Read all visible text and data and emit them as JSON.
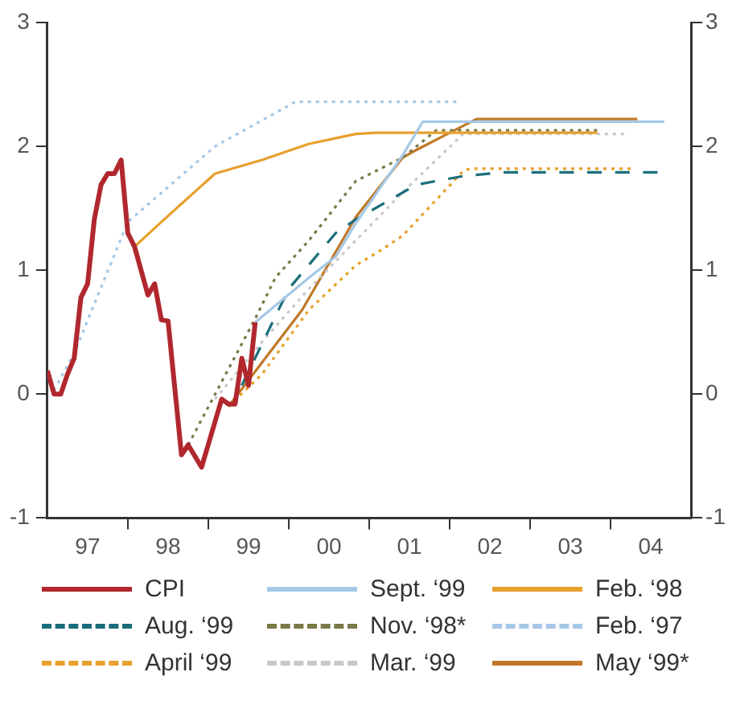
{
  "chart_data": {
    "type": "line",
    "xlim": [
      "1997-01",
      "2005-01"
    ],
    "xticks": [
      {
        "value": "1997-07",
        "label": "97"
      },
      {
        "value": "1998-01",
        "label": null
      },
      {
        "value": "1998-07",
        "label": "98"
      },
      {
        "value": "1999-01",
        "label": null
      },
      {
        "value": "1999-07",
        "label": "99"
      },
      {
        "value": "2000-01",
        "label": null
      },
      {
        "value": "2000-07",
        "label": "00"
      },
      {
        "value": "2001-01",
        "label": null
      },
      {
        "value": "2001-07",
        "label": "01"
      },
      {
        "value": "2002-01",
        "label": null
      },
      {
        "value": "2002-07",
        "label": "02"
      },
      {
        "value": "2003-01",
        "label": null
      },
      {
        "value": "2003-07",
        "label": "03"
      },
      {
        "value": "2004-01",
        "label": null
      },
      {
        "value": "2004-07",
        "label": "04"
      }
    ],
    "ylim": [
      -1,
      3
    ],
    "yticks": [
      -1,
      0,
      1,
      2,
      3
    ],
    "y2lim": [
      -1,
      3
    ],
    "y2ticks": [
      -1,
      0,
      1,
      2,
      3
    ],
    "grid": false,
    "legend": "bottom",
    "marker": "none",
    "series": [
      {
        "name": "CPI",
        "color": "#b0282e",
        "line_style": "solid",
        "x": [
          "1997-01",
          "1997-02",
          "1997-03",
          "1997-04",
          "1997-05",
          "1997-06",
          "1997-07",
          "1997-08",
          "1997-09",
          "1997-10",
          "1997-11",
          "1997-12",
          "1998-01",
          "1998-02",
          "1998-04",
          "1998-05",
          "1998-06",
          "1998-07",
          "1998-09",
          "1998-10",
          "1998-12",
          "1999-03",
          "1999-04",
          "1999-05",
          "1999-06",
          "1999-07",
          "1999-08"
        ],
        "values": [
          0.19,
          0,
          0,
          0.16,
          0.29,
          0.78,
          0.89,
          1.41,
          1.69,
          1.78,
          1.78,
          1.89,
          1.3,
          1.19,
          0.8,
          0.89,
          0.6,
          0.59,
          -0.49,
          -0.41,
          -0.59,
          -0.04,
          -0.08,
          -0.08,
          0.29,
          0.07,
          0.58
        ]
      },
      {
        "name": "Sept. ‘99",
        "color": "#a6c8e6",
        "line_style": "solid",
        "x": [
          "1999-08",
          "2000-04",
          "2000-08",
          "2000-11",
          "2001-06",
          "2001-09",
          "2004-09"
        ],
        "values": [
          0.58,
          0.94,
          1.11,
          1.38,
          1.93,
          2.2,
          2.2
        ]
      },
      {
        "name": "Feb. ‘98",
        "color": "#e8a02c",
        "line_style": "solid",
        "x": [
          "1998-02",
          "1998-06",
          "1999-02",
          "1999-09",
          "2000-04",
          "2000-11",
          "2001-02",
          "2003-11"
        ],
        "values": [
          1.19,
          1.39,
          1.78,
          1.89,
          2.02,
          2.1,
          2.11,
          2.11
        ]
      },
      {
        "name": "Aug. ‘99",
        "color": "#1a6e7a",
        "line_style": "dashed",
        "x": [
          "1999-06",
          "2000-01",
          "2000-08",
          "2000-11",
          "2001-08",
          "2002-03",
          "2002-09",
          "2004-08"
        ],
        "values": [
          0.07,
          0.85,
          1.3,
          1.41,
          1.69,
          1.76,
          1.79,
          1.79
        ]
      },
      {
        "name": "Nov. ‘98*",
        "color": "#7a7a48",
        "line_style": "dotted",
        "x": [
          "1998-10",
          "1999-08",
          "1999-11",
          "2000-04",
          "2000-11",
          "2001-06",
          "2001-11",
          "2003-11"
        ],
        "values": [
          -0.41,
          0.61,
          0.94,
          1.24,
          1.72,
          1.91,
          2.13,
          2.13
        ]
      },
      {
        "name": "Feb. ‘97",
        "color": "#a6c8e6",
        "line_style": "dotted",
        "x": [
          "1997-02",
          "1997-05",
          "1998-01",
          "1999-02",
          "2000-02",
          "2002-02"
        ],
        "values": [
          0.03,
          0.33,
          1.39,
          2.0,
          2.36,
          2.36
        ]
      },
      {
        "name": "April ‘99",
        "color": "#e8a02c",
        "line_style": "dotted",
        "x": [
          "1999-04",
          "1999-09",
          "2000-04",
          "2000-11",
          "2001-03",
          "2001-06",
          "2002-03",
          "2002-04",
          "2004-04"
        ],
        "values": [
          -0.1,
          0.16,
          0.68,
          1.04,
          1.17,
          1.28,
          1.8,
          1.82,
          1.82
        ]
      },
      {
        "name": "Mar. ‘99",
        "color": "#c8c8c8",
        "line_style": "dotted",
        "x": [
          "1999-02",
          "1999-09",
          "2000-04",
          "2000-11",
          "2001-06",
          "2002-03",
          "2004-03"
        ],
        "values": [
          -0.04,
          0.42,
          0.85,
          1.24,
          1.63,
          2.1,
          2.1
        ]
      },
      {
        "name": "May ‘99*",
        "color": "#c07828",
        "line_style": "solid",
        "x": [
          "1999-04",
          "2000-03",
          "2000-11",
          "2001-06",
          "2001-08",
          "2002-01",
          "2002-05",
          "2004-05"
        ],
        "values": [
          -0.1,
          0.68,
          1.43,
          1.91,
          1.97,
          2.11,
          2.22,
          2.22
        ]
      }
    ]
  }
}
